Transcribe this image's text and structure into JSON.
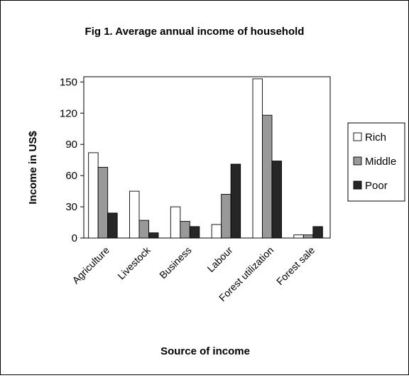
{
  "chart_data": {
    "type": "bar",
    "title": "Fig 1. Average annual income of household",
    "xlabel": "Source of income",
    "ylabel": "Income in US$",
    "categories": [
      "Agriculture",
      "Livestock",
      "Business",
      "Labour",
      "Forest utilization",
      "Forest sale"
    ],
    "series": [
      {
        "name": "Rich",
        "color": "#ffffff",
        "values": [
          82,
          45,
          30,
          13,
          153,
          3
        ]
      },
      {
        "name": "Middle",
        "color": "#999999",
        "values": [
          68,
          17,
          16,
          42,
          118,
          3
        ]
      },
      {
        "name": "Poor",
        "color": "#262626",
        "values": [
          24,
          5,
          11,
          71,
          74,
          11
        ]
      }
    ],
    "ylim": [
      0,
      150
    ],
    "yticks": [
      0,
      30,
      60,
      90,
      120,
      150
    ],
    "grid": false,
    "legend_position": "right"
  }
}
